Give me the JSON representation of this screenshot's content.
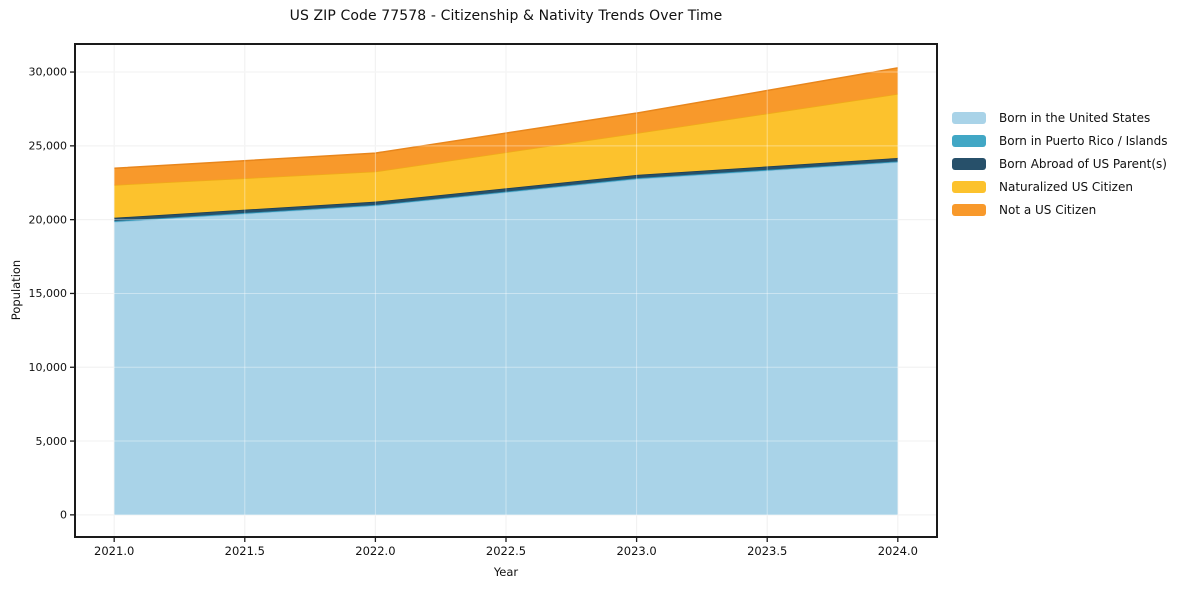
{
  "title": "US ZIP Code 77578 - Citizenship & Nativity Trends Over Time",
  "chart_data": {
    "type": "area",
    "stacked": true,
    "title": "US ZIP Code 77578 - Citizenship & Nativity Trends Over Time",
    "xlabel": "Year",
    "ylabel": "Population",
    "x": [
      2021,
      2022,
      2023,
      2024
    ],
    "series": [
      {
        "name": "Born in the United States",
        "color": "#a9d3e8",
        "edge": "#8fc2dd",
        "values": [
          19850,
          20950,
          22750,
          23900
        ]
      },
      {
        "name": "Born in Puerto Rico / Islands",
        "color": "#41a7c5",
        "edge": "#2d93b5",
        "values": [
          60,
          50,
          60,
          50
        ]
      },
      {
        "name": "Born Abroad of US Parent(s)",
        "color": "#27506a",
        "edge": "#1c3e54",
        "values": [
          220,
          220,
          220,
          230
        ]
      },
      {
        "name": "Naturalized US Citizen",
        "color": "#fcc22d",
        "edge": "#efab18",
        "values": [
          2220,
          2040,
          2830,
          4340
        ]
      },
      {
        "name": "Not a US Citizen",
        "color": "#f8992b",
        "edge": "#e8861c",
        "values": [
          1130,
          1250,
          1360,
          1760
        ]
      }
    ],
    "totals": [
      23480,
      24510,
      27220,
      30280
    ],
    "xlim": [
      2020.85,
      2024.15
    ],
    "ylim": [
      -1500,
      31900
    ],
    "x_ticks": [
      2021.0,
      2021.5,
      2022.0,
      2022.5,
      2023.0,
      2023.5,
      2024.0
    ],
    "x_tick_labels": [
      "2021.0",
      "2021.5",
      "2022.0",
      "2022.5",
      "2023.0",
      "2023.5",
      "2024.0"
    ],
    "y_ticks": [
      0,
      5000,
      10000,
      15000,
      20000,
      25000,
      30000
    ],
    "y_tick_labels": [
      "0",
      "5,000",
      "10,000",
      "15,000",
      "20,000",
      "25,000",
      "30,000"
    ],
    "grid": true,
    "legend_position": "right-outside",
    "colors": {
      "spine": "#1a1a1a",
      "grid_under": "#e9e9e9",
      "grid_over": "rgba(255,255,255,0.40)",
      "plot_bg": "#ffffff"
    }
  }
}
